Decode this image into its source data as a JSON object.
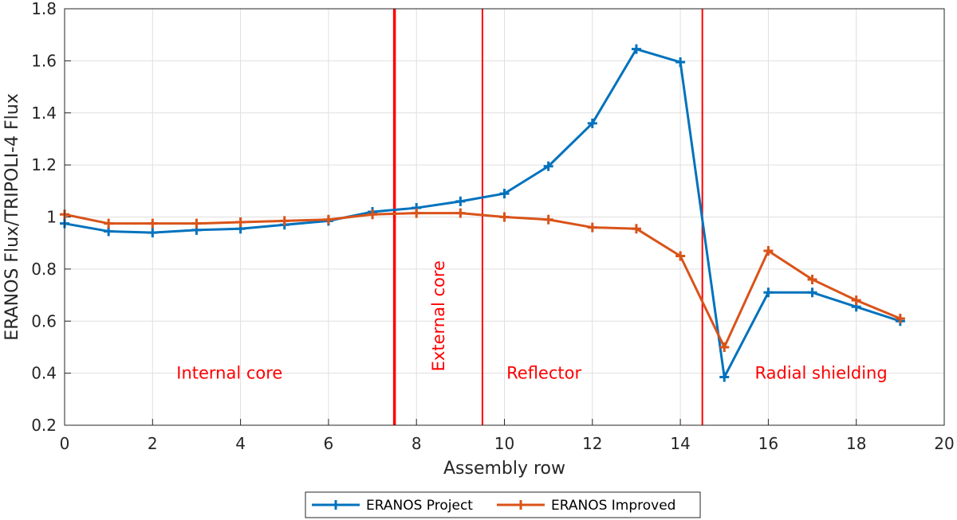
{
  "chart_data": {
    "type": "line",
    "xlabel": "Assembly row",
    "ylabel": "ERANOS Flux/TRIPOLI-4 Flux",
    "xlim": [
      0,
      20
    ],
    "ylim": [
      0.2,
      1.8
    ],
    "xticks": [
      0,
      2,
      4,
      6,
      8,
      10,
      12,
      14,
      16,
      18,
      20
    ],
    "yticks": [
      0.2,
      0.4,
      0.6,
      0.8,
      1,
      1.2,
      1.4,
      1.6,
      1.8
    ],
    "xtick_labels": [
      "0",
      "2",
      "4",
      "6",
      "8",
      "10",
      "12",
      "14",
      "16",
      "18",
      "20"
    ],
    "ytick_labels": [
      "0.2",
      "0.4",
      "0.6",
      "0.8",
      "1",
      "1.2",
      "1.4",
      "1.6",
      "1.8"
    ],
    "grid": true,
    "legend_position": "bottom-center",
    "series": [
      {
        "name": "ERANOS Project",
        "color": "#0072bd",
        "x": [
          0,
          1,
          2,
          3,
          4,
          5,
          6,
          7,
          8,
          9,
          10,
          11,
          12,
          13,
          14,
          15,
          16,
          17,
          18,
          19
        ],
        "y": [
          0.975,
          0.945,
          0.94,
          0.95,
          0.955,
          0.97,
          0.985,
          1.02,
          1.035,
          1.06,
          1.09,
          1.195,
          1.36,
          1.645,
          1.595,
          0.385,
          0.71,
          0.71,
          0.655,
          0.6
        ]
      },
      {
        "name": "ERANOS Improved",
        "color": "#d95319",
        "x": [
          0,
          1,
          2,
          3,
          4,
          5,
          6,
          7,
          8,
          9,
          10,
          11,
          12,
          13,
          14,
          15,
          16,
          17,
          18,
          19
        ],
        "y": [
          1.01,
          0.975,
          0.975,
          0.975,
          0.98,
          0.985,
          0.99,
          1.01,
          1.015,
          1.015,
          1.0,
          0.99,
          0.96,
          0.955,
          0.85,
          0.5,
          0.87,
          0.76,
          0.68,
          0.61
        ]
      }
    ],
    "vlines": [
      {
        "x": 7.5,
        "color": "#ff0000",
        "bold": true
      },
      {
        "x": 9.5,
        "color": "#ff0000",
        "bold": false
      },
      {
        "x": 14.5,
        "color": "#ff0000",
        "bold": false
      }
    ],
    "annotations": [
      {
        "text": "Internal core",
        "x": 3.75,
        "y": 0.4,
        "rotate": false
      },
      {
        "text": "External core",
        "x": 8.5,
        "y": 0.62,
        "rotate": true
      },
      {
        "text": "Reflector",
        "x": 10.9,
        "y": 0.4,
        "rotate": false
      },
      {
        "text": "Radial shielding",
        "x": 17.2,
        "y": 0.4,
        "rotate": false
      }
    ]
  }
}
